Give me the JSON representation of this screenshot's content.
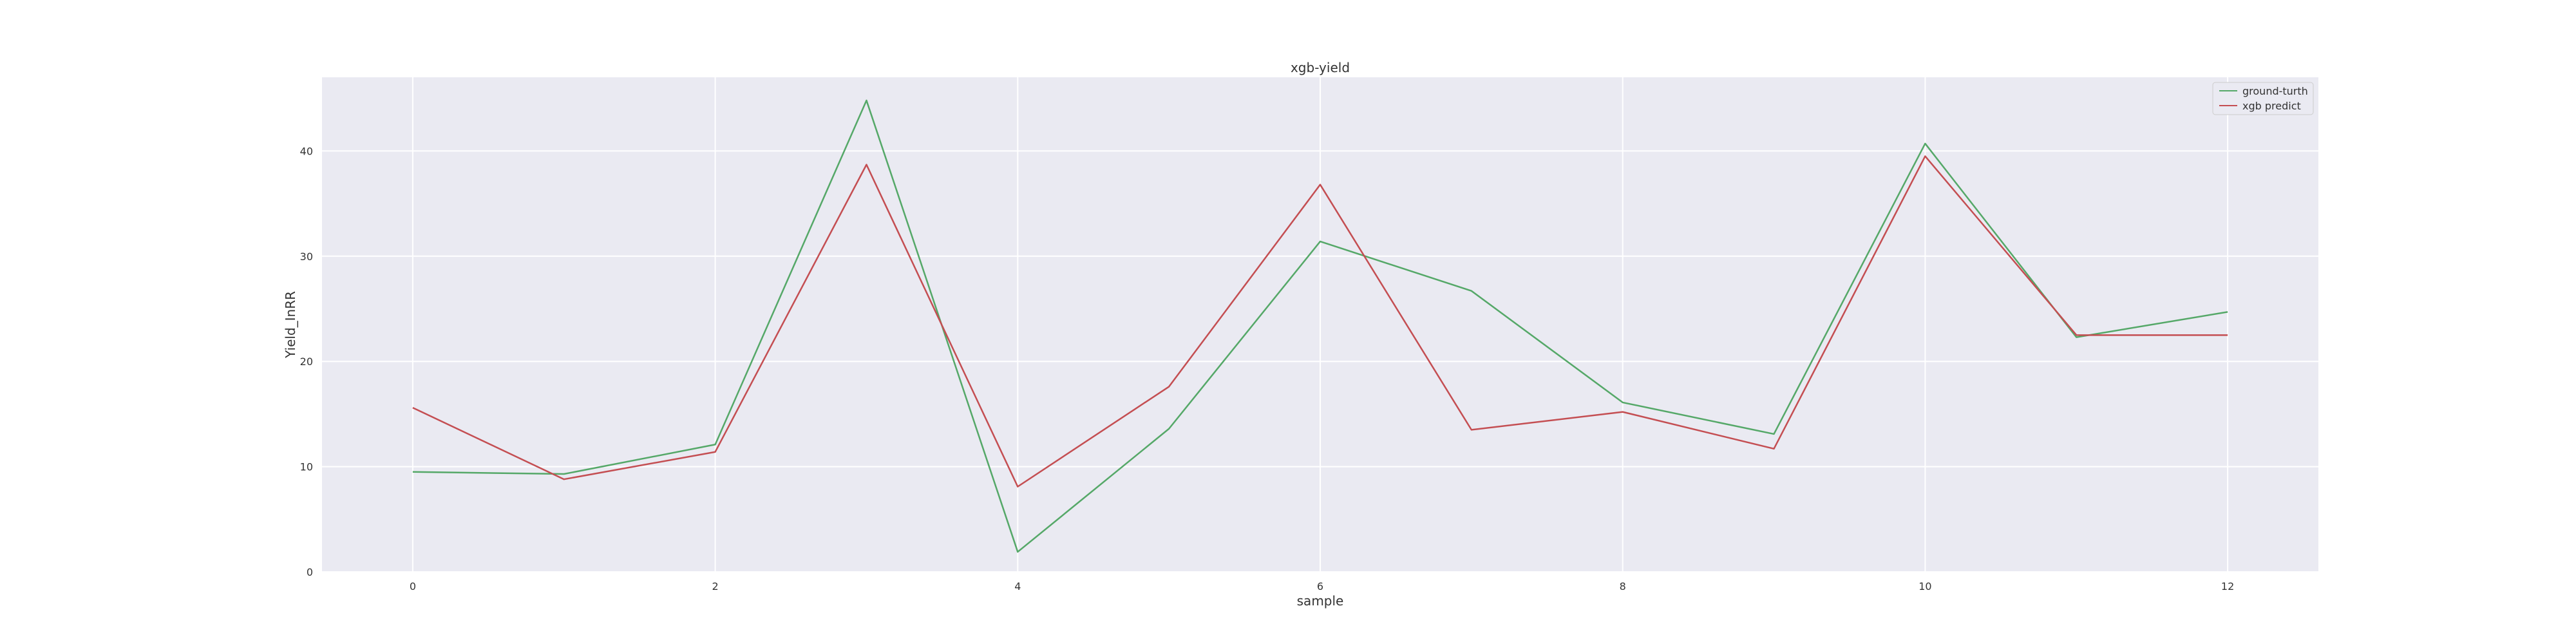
{
  "chart_data": {
    "type": "line",
    "title": "xgb-yield",
    "xlabel": "sample",
    "ylabel": "Yield_InRR",
    "x": [
      0,
      1,
      2,
      3,
      4,
      5,
      6,
      7,
      8,
      9,
      10,
      11,
      12
    ],
    "xticks": [
      "0",
      "2",
      "4",
      "6",
      "8",
      "10",
      "12"
    ],
    "yticks": [
      "0",
      "10",
      "20",
      "30",
      "40"
    ],
    "xlim": [
      -0.6,
      12.6
    ],
    "ylim": [
      0,
      47
    ],
    "grid": true,
    "legend_position": "top-right",
    "background": "#eaeaf2",
    "series": [
      {
        "name": "ground-turth",
        "color": "#55a868",
        "values": [
          9.5,
          9.3,
          12.1,
          44.8,
          1.9,
          13.6,
          31.4,
          26.7,
          16.1,
          13.1,
          40.7,
          22.3,
          24.7
        ]
      },
      {
        "name": "xgb predict",
        "color": "#c44e52",
        "values": [
          15.6,
          8.8,
          11.4,
          38.7,
          8.1,
          17.6,
          36.8,
          13.5,
          15.2,
          11.7,
          39.5,
          22.5,
          22.5
        ]
      }
    ]
  }
}
